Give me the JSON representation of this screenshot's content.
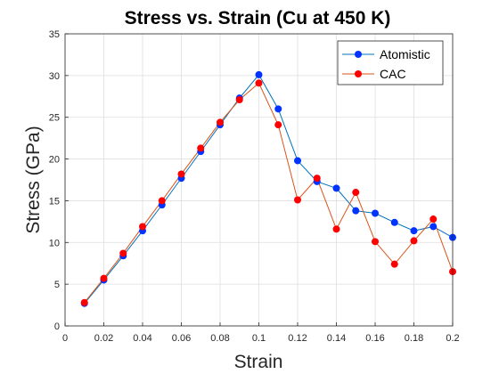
{
  "chart_data": {
    "type": "line",
    "title": "Stress vs. Strain (Cu at 450 K)",
    "xlabel": "Strain",
    "ylabel": "Stress (GPa)",
    "xlim": [
      0,
      0.2
    ],
    "ylim": [
      0,
      35
    ],
    "x_ticks": [
      "0",
      "0.02",
      "0.04",
      "0.06",
      "0.08",
      "0.1",
      "0.12",
      "0.14",
      "0.16",
      "0.18",
      "0.2"
    ],
    "y_ticks": [
      "0",
      "5",
      "10",
      "15",
      "20",
      "25",
      "30",
      "35"
    ],
    "grid": true,
    "legend_position": "top-right",
    "x": [
      0.01,
      0.02,
      0.03,
      0.04,
      0.05,
      0.06,
      0.07,
      0.08,
      0.09,
      0.1,
      0.11,
      0.12,
      0.13,
      0.14,
      0.15,
      0.16,
      0.17,
      0.18,
      0.19,
      0.2
    ],
    "series": [
      {
        "name": "Atomistic",
        "color": "#0033ff",
        "line_color": "#0072bd",
        "values": [
          2.7,
          5.5,
          8.4,
          11.4,
          14.5,
          17.7,
          20.9,
          24.1,
          27.3,
          30.1,
          26.0,
          19.8,
          17.3,
          16.5,
          13.8,
          13.5,
          12.4,
          11.4,
          11.9,
          10.6
        ]
      },
      {
        "name": "CAC",
        "color": "#ff0000",
        "line_color": "#d95319",
        "values": [
          2.8,
          5.7,
          8.7,
          11.9,
          15.0,
          18.2,
          21.3,
          24.4,
          27.1,
          29.1,
          24.1,
          15.1,
          17.7,
          11.6,
          16.0,
          10.1,
          7.4,
          10.2,
          12.8,
          6.5
        ]
      }
    ]
  }
}
